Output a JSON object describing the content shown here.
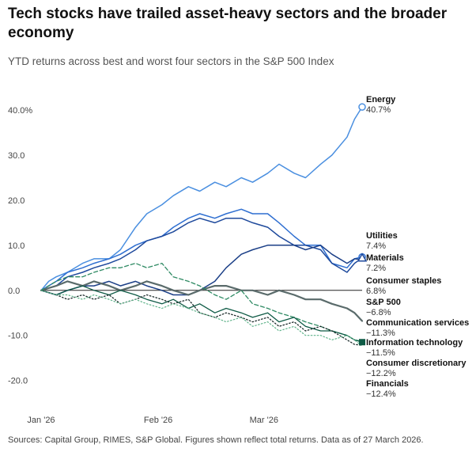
{
  "title": "Tech stocks have trailed asset-heavy sectors and the broader economy",
  "subtitle": "YTD returns across best and worst four sectors in the S&P 500 Index",
  "source": "Sources: Capital Group, RIMES, S&P Global. Figures shown reflect total returns. Data as of 27 March 2026.",
  "chart_data": {
    "type": "line",
    "title": "Tech stocks have trailed asset-heavy sectors and the broader economy",
    "subtitle": "YTD returns across best and worst four sectors in the S&P 500 Index",
    "x_ticks": [
      "Jan '26",
      "Feb '26",
      "Mar '26"
    ],
    "x_tick_dates": [
      "2026-01-01",
      "2026-02-01",
      "2026-03-01"
    ],
    "y_ticks": [
      40,
      30,
      20,
      10,
      0,
      -10,
      -20
    ],
    "y_tick_labels": [
      "40.0%",
      "30.0",
      "20.0",
      "10.0",
      "0.0",
      "-10.0",
      "-20.0"
    ],
    "ylim": [
      -22,
      43
    ],
    "xlim": [
      "2026-01-01",
      "2026-03-27"
    ],
    "grid": false,
    "zero_line": true,
    "series": [
      {
        "name": "Energy",
        "value_label": "40.7%",
        "color": "#4a8fe0",
        "dash": "solid",
        "width": 1.5,
        "end_marker": "open-circle",
        "points": [
          [
            "2026-01-01",
            0
          ],
          [
            "2026-01-03",
            2
          ],
          [
            "2026-01-05",
            3
          ],
          [
            "2026-01-08",
            4
          ],
          [
            "2026-01-12",
            6
          ],
          [
            "2026-01-15",
            7
          ],
          [
            "2026-01-19",
            7
          ],
          [
            "2026-01-22",
            9
          ],
          [
            "2026-01-26",
            14
          ],
          [
            "2026-01-29",
            17
          ],
          [
            "2026-02-02",
            19
          ],
          [
            "2026-02-05",
            21
          ],
          [
            "2026-02-09",
            23
          ],
          [
            "2026-02-12",
            22
          ],
          [
            "2026-02-16",
            24
          ],
          [
            "2026-02-19",
            23
          ],
          [
            "2026-02-23",
            25
          ],
          [
            "2026-02-26",
            24
          ],
          [
            "2026-03-02",
            26
          ],
          [
            "2026-03-05",
            28
          ],
          [
            "2026-03-09",
            26
          ],
          [
            "2026-03-12",
            25
          ],
          [
            "2026-03-16",
            28
          ],
          [
            "2026-03-19",
            30
          ],
          [
            "2026-03-23",
            34
          ],
          [
            "2026-03-25",
            38
          ],
          [
            "2026-03-27",
            40.7
          ]
        ]
      },
      {
        "name": "Utilities",
        "value_label": "7.4%",
        "color": "#2f6fd1",
        "dash": "solid",
        "width": 1.5,
        "end_marker": "open-circle",
        "points": [
          [
            "2026-01-01",
            0
          ],
          [
            "2026-01-05",
            2
          ],
          [
            "2026-01-08",
            4
          ],
          [
            "2026-01-12",
            5
          ],
          [
            "2026-01-15",
            6
          ],
          [
            "2026-01-19",
            7
          ],
          [
            "2026-01-22",
            8
          ],
          [
            "2026-01-26",
            10
          ],
          [
            "2026-01-29",
            11
          ],
          [
            "2026-02-02",
            12
          ],
          [
            "2026-02-05",
            14
          ],
          [
            "2026-02-09",
            16
          ],
          [
            "2026-02-12",
            17
          ],
          [
            "2026-02-16",
            16
          ],
          [
            "2026-02-19",
            17
          ],
          [
            "2026-02-23",
            18
          ],
          [
            "2026-02-26",
            17
          ],
          [
            "2026-03-02",
            17
          ],
          [
            "2026-03-05",
            15
          ],
          [
            "2026-03-09",
            12
          ],
          [
            "2026-03-12",
            10
          ],
          [
            "2026-03-16",
            10
          ],
          [
            "2026-03-19",
            6
          ],
          [
            "2026-03-23",
            5
          ],
          [
            "2026-03-25",
            7
          ],
          [
            "2026-03-27",
            7.4
          ]
        ]
      },
      {
        "name": "Materials",
        "value_label": "7.2%",
        "color": "#1f4a9c",
        "dash": "solid",
        "width": 1.5,
        "end_marker": "open-triangle",
        "points": [
          [
            "2026-01-01",
            0
          ],
          [
            "2026-01-05",
            1
          ],
          [
            "2026-01-08",
            3
          ],
          [
            "2026-01-12",
            4
          ],
          [
            "2026-01-15",
            5
          ],
          [
            "2026-01-19",
            6
          ],
          [
            "2026-01-22",
            7
          ],
          [
            "2026-01-26",
            9
          ],
          [
            "2026-01-29",
            11
          ],
          [
            "2026-02-02",
            12
          ],
          [
            "2026-02-05",
            13
          ],
          [
            "2026-02-09",
            15
          ],
          [
            "2026-02-12",
            16
          ],
          [
            "2026-02-16",
            15
          ],
          [
            "2026-02-19",
            16
          ],
          [
            "2026-02-23",
            16
          ],
          [
            "2026-02-26",
            15
          ],
          [
            "2026-03-02",
            14
          ],
          [
            "2026-03-05",
            12
          ],
          [
            "2026-03-09",
            10
          ],
          [
            "2026-03-12",
            10
          ],
          [
            "2026-03-16",
            9
          ],
          [
            "2026-03-19",
            6
          ],
          [
            "2026-03-23",
            4
          ],
          [
            "2026-03-25",
            6
          ],
          [
            "2026-03-27",
            7.2
          ]
        ]
      },
      {
        "name": "Consumer staples",
        "value_label": "6.8%",
        "color": "#1b3f87",
        "dash": "solid",
        "width": 1.5,
        "end_marker": "none",
        "points": [
          [
            "2026-01-01",
            0
          ],
          [
            "2026-01-05",
            -1
          ],
          [
            "2026-01-08",
            0
          ],
          [
            "2026-01-12",
            1
          ],
          [
            "2026-01-15",
            1
          ],
          [
            "2026-01-19",
            2
          ],
          [
            "2026-01-22",
            1
          ],
          [
            "2026-01-26",
            2
          ],
          [
            "2026-01-29",
            1
          ],
          [
            "2026-02-02",
            0
          ],
          [
            "2026-02-05",
            -1
          ],
          [
            "2026-02-09",
            -1
          ],
          [
            "2026-02-12",
            0
          ],
          [
            "2026-02-16",
            2
          ],
          [
            "2026-02-19",
            5
          ],
          [
            "2026-02-23",
            8
          ],
          [
            "2026-02-26",
            9
          ],
          [
            "2026-03-02",
            10
          ],
          [
            "2026-03-05",
            10
          ],
          [
            "2026-03-09",
            10
          ],
          [
            "2026-03-12",
            9
          ],
          [
            "2026-03-16",
            10
          ],
          [
            "2026-03-19",
            8
          ],
          [
            "2026-03-23",
            6
          ],
          [
            "2026-03-25",
            7
          ],
          [
            "2026-03-27",
            6.8
          ]
        ]
      },
      {
        "name": "S&P 500",
        "value_label": "−6.8%",
        "color": "#5a6b6b",
        "dash": "solid",
        "width": 2.2,
        "end_marker": "none",
        "points": [
          [
            "2026-01-01",
            0
          ],
          [
            "2026-01-05",
            1
          ],
          [
            "2026-01-08",
            2
          ],
          [
            "2026-01-12",
            1
          ],
          [
            "2026-01-15",
            2
          ],
          [
            "2026-01-19",
            1
          ],
          [
            "2026-01-22",
            0
          ],
          [
            "2026-01-26",
            1
          ],
          [
            "2026-01-29",
            2
          ],
          [
            "2026-02-02",
            1
          ],
          [
            "2026-02-05",
            0
          ],
          [
            "2026-02-09",
            -1
          ],
          [
            "2026-02-12",
            0
          ],
          [
            "2026-02-16",
            1
          ],
          [
            "2026-02-19",
            1
          ],
          [
            "2026-02-23",
            0
          ],
          [
            "2026-02-26",
            0
          ],
          [
            "2026-03-02",
            -1
          ],
          [
            "2026-03-05",
            0
          ],
          [
            "2026-03-09",
            -1
          ],
          [
            "2026-03-12",
            -2
          ],
          [
            "2026-03-16",
            -2
          ],
          [
            "2026-03-19",
            -3
          ],
          [
            "2026-03-23",
            -4
          ],
          [
            "2026-03-25",
            -5
          ],
          [
            "2026-03-27",
            -6.8
          ]
        ]
      },
      {
        "name": "Communication services",
        "value_label": "−11.3%",
        "color": "#2e8a63",
        "dash": "dashed",
        "width": 1.3,
        "end_marker": "none",
        "points": [
          [
            "2026-01-01",
            0
          ],
          [
            "2026-01-05",
            2
          ],
          [
            "2026-01-08",
            3
          ],
          [
            "2026-01-12",
            3
          ],
          [
            "2026-01-15",
            4
          ],
          [
            "2026-01-19",
            5
          ],
          [
            "2026-01-22",
            5
          ],
          [
            "2026-01-26",
            6
          ],
          [
            "2026-01-29",
            5
          ],
          [
            "2026-02-02",
            6
          ],
          [
            "2026-02-05",
            3
          ],
          [
            "2026-02-09",
            2
          ],
          [
            "2026-02-12",
            1
          ],
          [
            "2026-02-16",
            -1
          ],
          [
            "2026-02-19",
            -2
          ],
          [
            "2026-02-23",
            0
          ],
          [
            "2026-02-26",
            -3
          ],
          [
            "2026-03-02",
            -4
          ],
          [
            "2026-03-05",
            -5
          ],
          [
            "2026-03-09",
            -6
          ],
          [
            "2026-03-12",
            -7
          ],
          [
            "2026-03-16",
            -8
          ],
          [
            "2026-03-19",
            -9
          ],
          [
            "2026-03-23",
            -10
          ],
          [
            "2026-03-25",
            -11
          ],
          [
            "2026-03-27",
            -11.3
          ]
        ]
      },
      {
        "name": "Information technology",
        "value_label": "−11.5%",
        "color": "#0e5a45",
        "dash": "solid",
        "width": 1.3,
        "end_marker": "filled-square",
        "points": [
          [
            "2026-01-01",
            0
          ],
          [
            "2026-01-05",
            -1
          ],
          [
            "2026-01-08",
            0
          ],
          [
            "2026-01-12",
            1
          ],
          [
            "2026-01-15",
            0
          ],
          [
            "2026-01-19",
            -1
          ],
          [
            "2026-01-22",
            0
          ],
          [
            "2026-01-26",
            -1
          ],
          [
            "2026-01-29",
            -2
          ],
          [
            "2026-02-02",
            -3
          ],
          [
            "2026-02-05",
            -2
          ],
          [
            "2026-02-09",
            -4
          ],
          [
            "2026-02-12",
            -3
          ],
          [
            "2026-02-16",
            -5
          ],
          [
            "2026-02-19",
            -4
          ],
          [
            "2026-02-23",
            -5
          ],
          [
            "2026-02-26",
            -6
          ],
          [
            "2026-03-02",
            -5
          ],
          [
            "2026-03-05",
            -7
          ],
          [
            "2026-03-09",
            -6
          ],
          [
            "2026-03-12",
            -8
          ],
          [
            "2026-03-16",
            -9
          ],
          [
            "2026-03-19",
            -9
          ],
          [
            "2026-03-23",
            -10
          ],
          [
            "2026-03-25",
            -11
          ],
          [
            "2026-03-27",
            -11.5
          ]
        ]
      },
      {
        "name": "Consumer discretionary",
        "value_label": "−12.2%",
        "color": "#1c2b2b",
        "dash": "dotted",
        "width": 1.3,
        "end_marker": "none",
        "points": [
          [
            "2026-01-01",
            0
          ],
          [
            "2026-01-05",
            -1
          ],
          [
            "2026-01-08",
            -2
          ],
          [
            "2026-01-12",
            -1
          ],
          [
            "2026-01-15",
            -2
          ],
          [
            "2026-01-19",
            -1
          ],
          [
            "2026-01-22",
            -3
          ],
          [
            "2026-01-26",
            -2
          ],
          [
            "2026-01-29",
            -1
          ],
          [
            "2026-02-02",
            -2
          ],
          [
            "2026-02-05",
            -3
          ],
          [
            "2026-02-09",
            -2
          ],
          [
            "2026-02-12",
            -5
          ],
          [
            "2026-02-16",
            -6
          ],
          [
            "2026-02-19",
            -5
          ],
          [
            "2026-02-23",
            -6
          ],
          [
            "2026-02-26",
            -7
          ],
          [
            "2026-03-02",
            -6
          ],
          [
            "2026-03-05",
            -8
          ],
          [
            "2026-03-09",
            -7
          ],
          [
            "2026-03-12",
            -9
          ],
          [
            "2026-03-16",
            -8
          ],
          [
            "2026-03-19",
            -9
          ],
          [
            "2026-03-23",
            -11
          ],
          [
            "2026-03-25",
            -12
          ],
          [
            "2026-03-27",
            -12.2
          ]
        ]
      },
      {
        "name": "Financials",
        "value_label": "−12.4%",
        "color": "#5fb38a",
        "dash": "dotted",
        "width": 1.2,
        "end_marker": "none",
        "points": [
          [
            "2026-01-01",
            0
          ],
          [
            "2026-01-05",
            -1
          ],
          [
            "2026-01-08",
            -1
          ],
          [
            "2026-01-12",
            -2
          ],
          [
            "2026-01-15",
            -1
          ],
          [
            "2026-01-19",
            -2
          ],
          [
            "2026-01-22",
            -3
          ],
          [
            "2026-01-26",
            -2
          ],
          [
            "2026-01-29",
            -3
          ],
          [
            "2026-02-02",
            -4
          ],
          [
            "2026-02-05",
            -3
          ],
          [
            "2026-02-09",
            -4
          ],
          [
            "2026-02-12",
            -5
          ],
          [
            "2026-02-16",
            -6
          ],
          [
            "2026-02-19",
            -7
          ],
          [
            "2026-02-23",
            -6
          ],
          [
            "2026-02-26",
            -8
          ],
          [
            "2026-03-02",
            -7
          ],
          [
            "2026-03-05",
            -9
          ],
          [
            "2026-03-09",
            -8
          ],
          [
            "2026-03-12",
            -10
          ],
          [
            "2026-03-16",
            -10
          ],
          [
            "2026-03-19",
            -11
          ],
          [
            "2026-03-23",
            -10
          ],
          [
            "2026-03-25",
            -11
          ],
          [
            "2026-03-27",
            -12.4
          ]
        ]
      }
    ]
  }
}
